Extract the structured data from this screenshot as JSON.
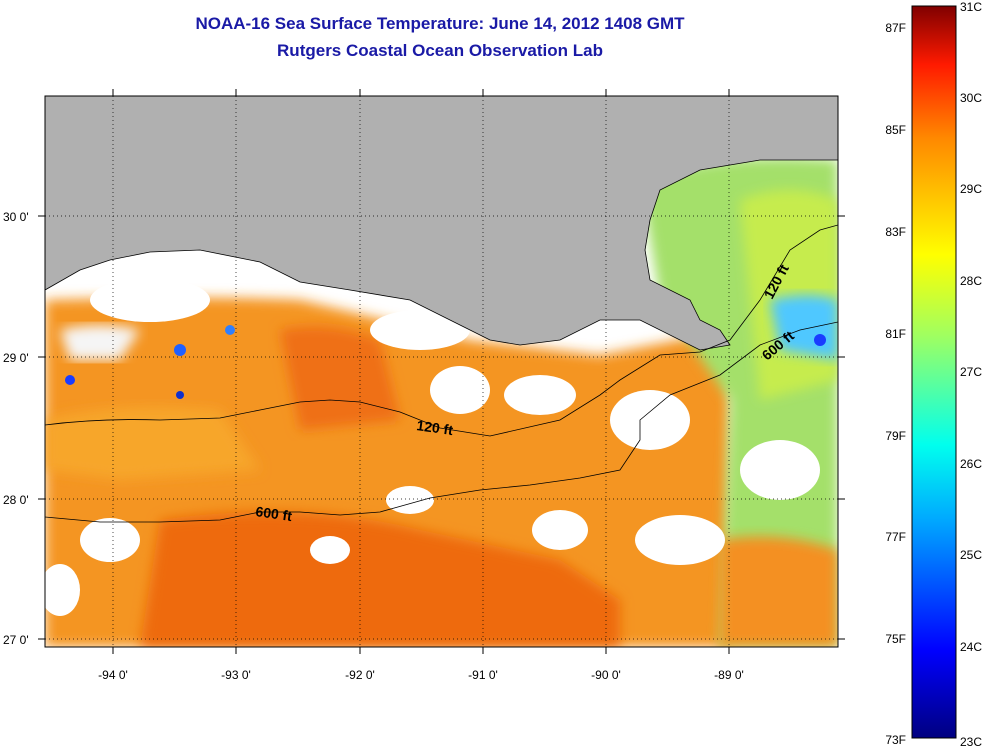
{
  "title": "NOAA-16 Sea Surface Temperature:  June 14, 2012 1408 GMT",
  "subtitle": "Rutgers Coastal Ocean Observation Lab",
  "lat_ticks": [
    "30 0'",
    "29 0'",
    "28 0'",
    "27 0'"
  ],
  "lon_ticks": [
    "-94 0'",
    "-93 0'",
    "-92 0'",
    "-91 0'",
    "-90 0'",
    "-89 0'"
  ],
  "contours": [
    {
      "label": "120 ft",
      "curve": "shelf-north"
    },
    {
      "label": "600 ft",
      "curve": "shelf-south"
    },
    {
      "label": "120 ft",
      "curve": "east"
    },
    {
      "label": "600 ft",
      "curve": "east"
    }
  ],
  "colorbar": {
    "f_labels": [
      "87F",
      "85F",
      "83F",
      "81F",
      "79F",
      "77F",
      "75F",
      "73F"
    ],
    "c_labels": [
      "31C",
      "30C",
      "29C",
      "28C",
      "27C",
      "26C",
      "25C",
      "24C",
      "23C"
    ],
    "range_c": [
      23,
      31
    ],
    "range_f": [
      73,
      87
    ]
  },
  "colors": {
    "land": "#b0b0b0",
    "title": "#1a1aa6",
    "warm": "#f07a18",
    "cool": "#1aa6ff"
  }
}
